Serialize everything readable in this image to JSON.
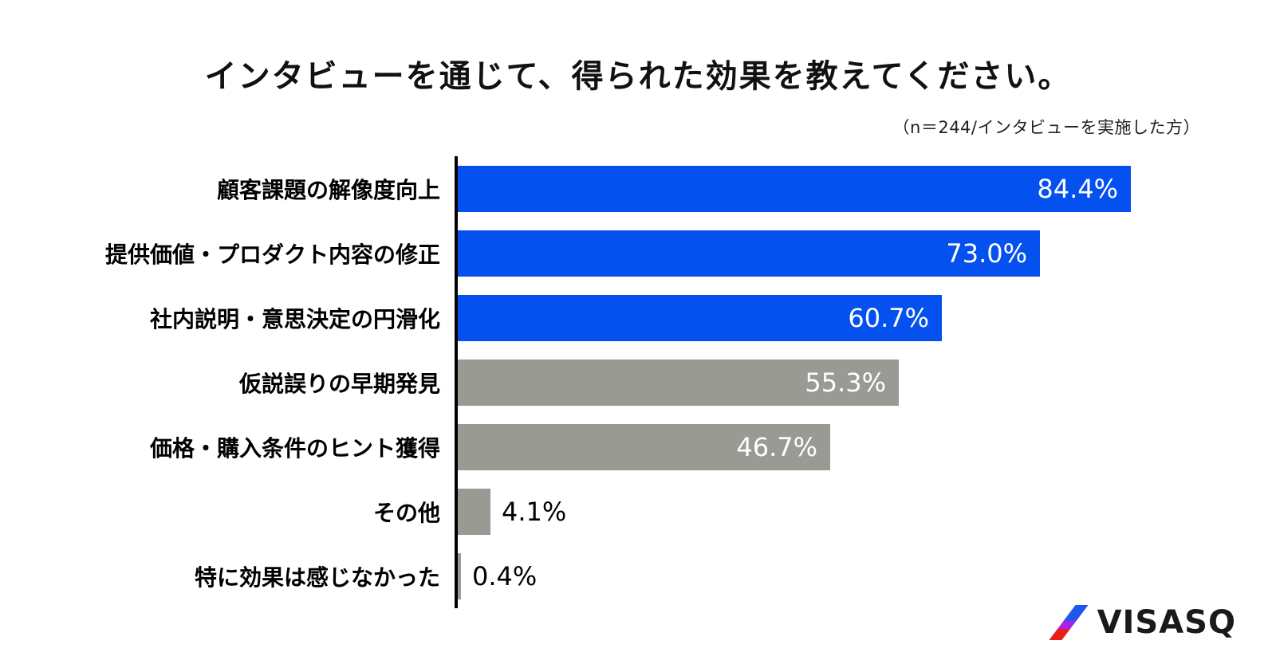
{
  "title": "インタビューを通じて、得られた効果を教えてください。",
  "subtitle": "（n＝244/インタビューを実施した方）",
  "chart_data": {
    "type": "bar",
    "orientation": "horizontal",
    "title": "インタビューを通じて、得られた効果を教えてください。",
    "note": "（n＝244/インタビューを実施した方）",
    "categories": [
      "顧客課題の解像度向上",
      "提供価値・プロダクト内容の修正",
      "社内説明・意思決定の円滑化",
      "仮説誤りの早期発見",
      "価格・購入条件のヒント獲得",
      "その他",
      "特に効果は感じなかった"
    ],
    "values": [
      84.4,
      73.0,
      60.7,
      55.3,
      46.7,
      4.1,
      0.4
    ],
    "value_labels": [
      "84.4%",
      "73.0%",
      "60.7%",
      "55.3%",
      "46.7%",
      "4.1%",
      "0.4%"
    ],
    "bar_colors": [
      "#0551F0",
      "#0551F0",
      "#0551F0",
      "#9A9A95",
      "#9A9A95",
      "#9A9A95",
      "#9A9A95"
    ],
    "highlight_color": "#0551F0",
    "muted_color": "#9A9A95",
    "axis_color": "#000000",
    "value_label_inside_color": "#FFFFFF",
    "value_label_outside_color": "#000000",
    "xlim": [
      0,
      100
    ],
    "grid": false,
    "legend": false
  },
  "logo": {
    "text": "VISASQ",
    "text_color": "#1A1A1A",
    "slash_colors": [
      "#2257EE",
      "#A922E8",
      "#EE1B1B"
    ]
  }
}
